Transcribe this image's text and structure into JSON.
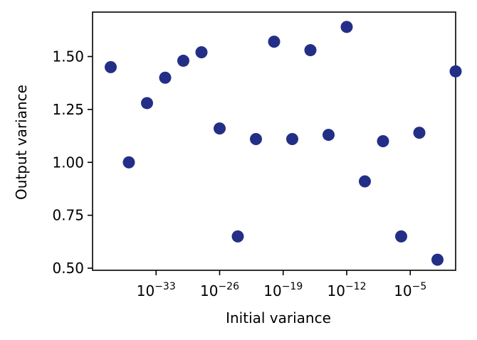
{
  "chart_data": {
    "type": "scatter",
    "title": "",
    "xlabel": "Initial variance",
    "ylabel": "Output variance",
    "x_scale": "log",
    "xlim": [
      1e-40,
      1.0
    ],
    "ylim": [
      0.49,
      1.71
    ],
    "x_ticks": [
      {
        "value": 1e-33,
        "base": "10",
        "exp": "−33"
      },
      {
        "value": 1e-26,
        "base": "10",
        "exp": "−26"
      },
      {
        "value": 1e-19,
        "base": "10",
        "exp": "−19"
      },
      {
        "value": 1e-12,
        "base": "10",
        "exp": "−12"
      },
      {
        "value": 1e-05,
        "base": "10",
        "exp": "−5"
      }
    ],
    "y_ticks": [
      {
        "value": 0.5,
        "label": "0.50"
      },
      {
        "value": 0.75,
        "label": "0.75"
      },
      {
        "value": 1.0,
        "label": "1.00"
      },
      {
        "value": 1.25,
        "label": "1.25"
      },
      {
        "value": 1.5,
        "label": "1.50"
      }
    ],
    "grid": false,
    "marker_color": "#232f86",
    "series": [
      {
        "x": [
          1e-38,
          1e-36,
          1e-34,
          1e-32,
          1e-30,
          1e-28,
          1e-26,
          1e-24,
          1e-22,
          1e-20,
          1e-18,
          1e-16,
          1e-14,
          1e-12,
          1e-10,
          1e-08,
          1e-06,
          0.0001,
          0.01,
          1.0
        ],
        "y": [
          1.45,
          1.0,
          1.28,
          1.4,
          1.48,
          1.52,
          1.16,
          0.65,
          1.11,
          1.57,
          1.11,
          1.53,
          1.13,
          1.64,
          0.91,
          1.1,
          0.65,
          1.14,
          0.54,
          1.43
        ]
      }
    ]
  }
}
